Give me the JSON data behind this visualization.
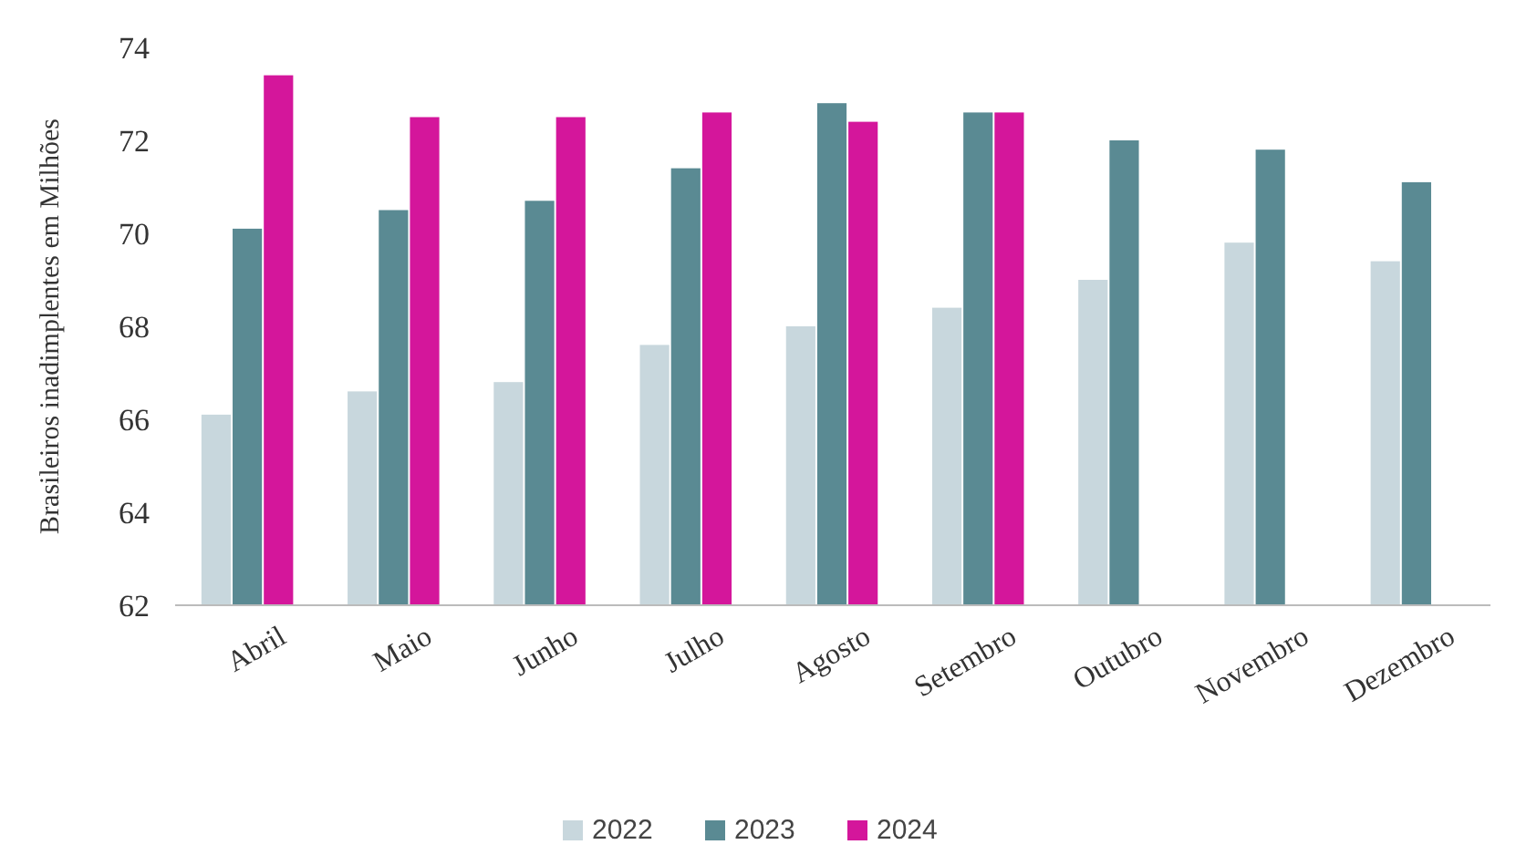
{
  "chart_data": {
    "type": "bar",
    "ylabel": "Brasileiros inadimplentes em Milhões",
    "categories": [
      "Abril",
      "Maio",
      "Junho",
      "Julho",
      "Agosto",
      "Setembro",
      "Outubro",
      "Novembro",
      "Dezembro"
    ],
    "series": [
      {
        "name": "2022",
        "color": "#c8d7dd",
        "values": [
          66.1,
          66.6,
          66.8,
          67.6,
          68.0,
          68.4,
          69.0,
          69.8,
          69.4
        ]
      },
      {
        "name": "2023",
        "color": "#5a8a93",
        "values": [
          70.1,
          70.5,
          70.7,
          71.4,
          72.8,
          72.6,
          72.0,
          71.8,
          71.1
        ]
      },
      {
        "name": "2024",
        "color": "#d4169b",
        "values": [
          73.4,
          72.5,
          72.5,
          72.6,
          72.4,
          72.6,
          null,
          null,
          null
        ]
      }
    ],
    "ylim": [
      62,
      74
    ],
    "yticks": [
      62,
      64,
      66,
      68,
      70,
      72,
      74
    ],
    "grid": false,
    "legend": "bottom"
  }
}
